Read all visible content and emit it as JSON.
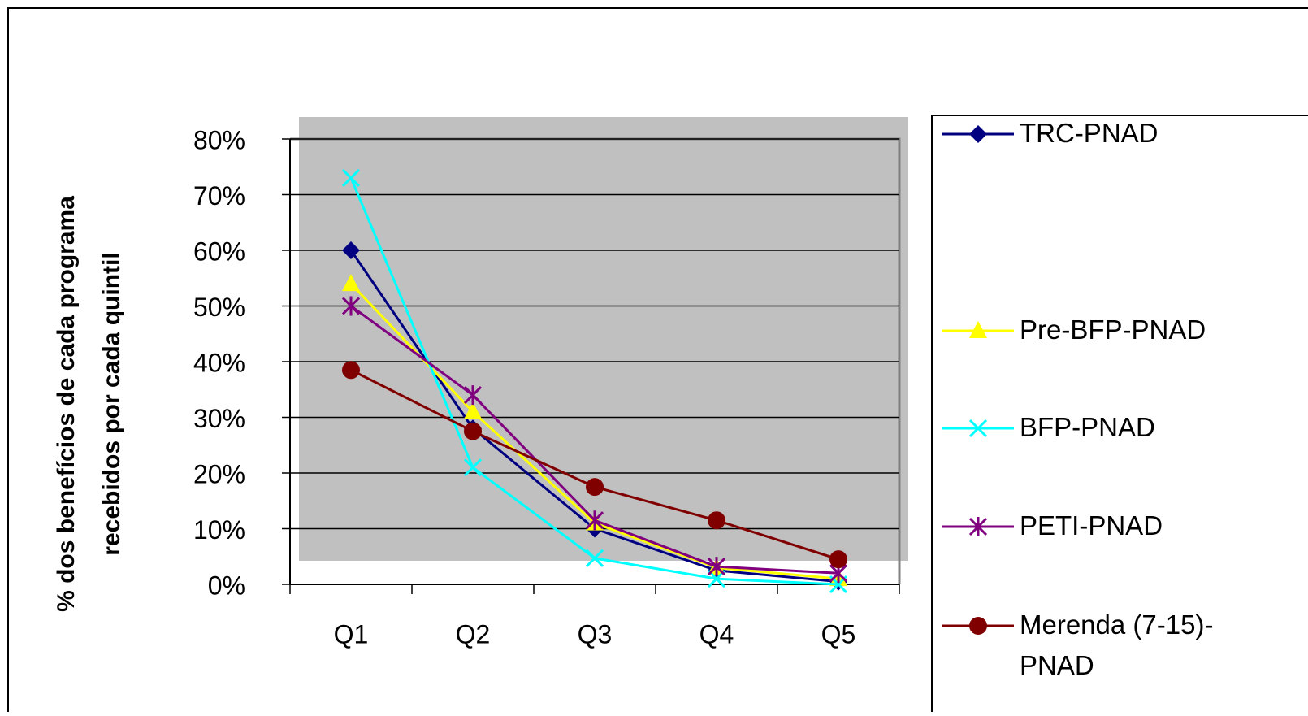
{
  "chart_data": {
    "type": "line",
    "y_label": "% dos benefícios de cada programa recebidos por cada quintil",
    "categories": [
      "Q1",
      "Q2",
      "Q3",
      "Q4",
      "Q5"
    ],
    "ylim": [
      0,
      80
    ],
    "yticks": [
      {
        "value": 0,
        "label": "0%"
      },
      {
        "value": 10,
        "label": "10%"
      },
      {
        "value": 20,
        "label": "20%"
      },
      {
        "value": 30,
        "label": "30%"
      },
      {
        "value": 40,
        "label": "40%"
      },
      {
        "value": 50,
        "label": "50%"
      },
      {
        "value": 60,
        "label": "60%"
      },
      {
        "value": 70,
        "label": "70%"
      },
      {
        "value": 80,
        "label": "80%"
      }
    ],
    "grid": true,
    "legend": "right",
    "series": [
      {
        "name": "TRC-PNAD",
        "color": "#000080",
        "marker": "diamond",
        "values": [
          60,
          28,
          10,
          2.5,
          0.5
        ]
      },
      {
        "name": "Pre-BFP-PNAD",
        "color": "#ffff00",
        "marker": "triangle",
        "values": [
          54,
          31,
          11,
          3,
          1
        ]
      },
      {
        "name": "BFP-PNAD",
        "color": "#00ffff",
        "marker": "x",
        "values": [
          73,
          21,
          4.7,
          1,
          0
        ]
      },
      {
        "name": "PETI-PNAD",
        "color": "#800080",
        "marker": "star",
        "values": [
          50,
          34,
          11.5,
          3.2,
          2
        ]
      },
      {
        "name": "Merenda (7-15)-PNAD",
        "color": "#800000",
        "marker": "circle",
        "values": [
          38.5,
          27.5,
          17.5,
          11.5,
          4.5
        ]
      }
    ]
  }
}
